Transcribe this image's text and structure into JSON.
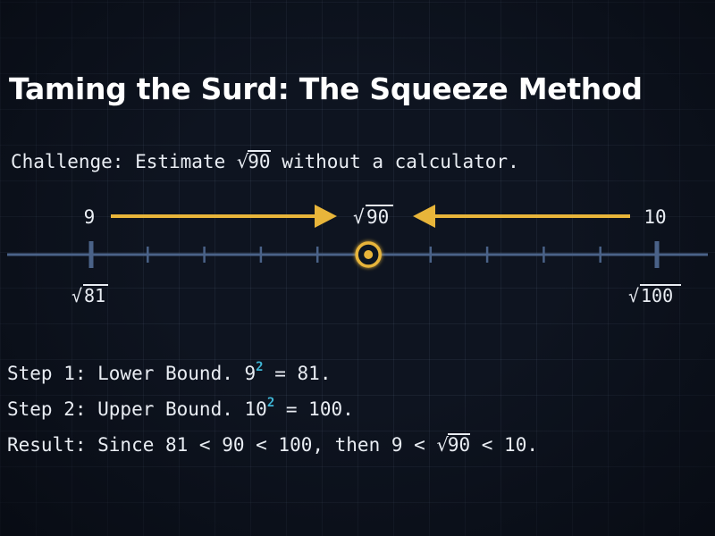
{
  "title": "Taming the Surd: The Squeeze Method",
  "challenge": {
    "before": "Challenge: Estimate ",
    "radicand": "90",
    "after": " without a calculator."
  },
  "number_line": {
    "left_label": "9",
    "left_sublabel_radicand": "81",
    "right_label": "10",
    "right_sublabel_radicand": "100",
    "target_radicand": "90",
    "target_value": 9.49,
    "min": 9,
    "max": 10,
    "ticks": 10
  },
  "steps": {
    "step1": {
      "prefix": "Step 1: Lower Bound. ",
      "base": "9",
      "exp": "2",
      "suffix": " = 81."
    },
    "step2": {
      "prefix": "Step 2: Upper Bound. ",
      "base": "10",
      "exp": "2",
      "suffix": " = 100."
    },
    "result": {
      "prefix": "Result: Since 81 < 90 < 100, then 9 < ",
      "radicand": "90",
      "suffix": " < 10."
    }
  },
  "colors": {
    "background": "#0e1420",
    "line": "#4a6288",
    "accent": "#e8b53a",
    "exponent": "#3fb6d6",
    "text": "#e9edf3"
  }
}
